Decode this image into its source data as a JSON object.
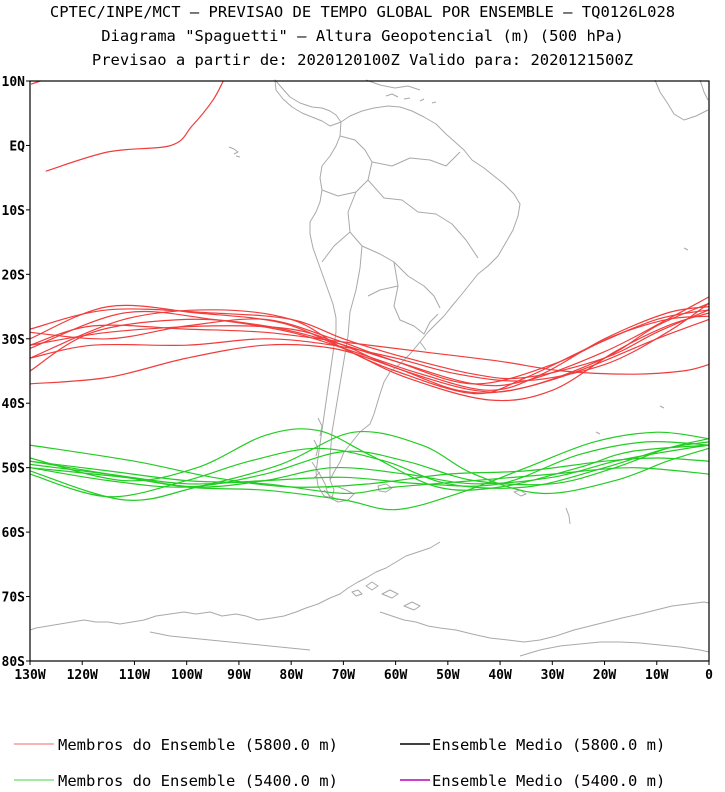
{
  "titles": {
    "line1": "CPTEC/INPE/MCT — PREVISAO DE TEMPO GLOBAL POR ENSEMBLE — TQ0126L028",
    "line2": "Diagrama \"Spaguetti\" — Altura Geopotencial (m) (500 hPa)",
    "line3": "Previsao a partir de: 2020120100Z  Valido para: 2020121500Z"
  },
  "map": {
    "lon_range": [
      -130,
      0
    ],
    "lat_range": [
      -80,
      10
    ],
    "lat_ticks": [
      {
        "lat": 10,
        "label": "10N"
      },
      {
        "lat": 0,
        "label": "EQ"
      },
      {
        "lat": -10,
        "label": "10S"
      },
      {
        "lat": -20,
        "label": "20S"
      },
      {
        "lat": -30,
        "label": "30S"
      },
      {
        "lat": -40,
        "label": "40S"
      },
      {
        "lat": -50,
        "label": "50S"
      },
      {
        "lat": -60,
        "label": "60S"
      },
      {
        "lat": -70,
        "label": "70S"
      },
      {
        "lat": -80,
        "label": "80S"
      }
    ],
    "lon_ticks": [
      {
        "lon": -130,
        "label": "130W"
      },
      {
        "lon": -120,
        "label": "120W"
      },
      {
        "lon": -110,
        "label": "110W"
      },
      {
        "lon": -100,
        "label": "100W"
      },
      {
        "lon": -90,
        "label": "90W"
      },
      {
        "lon": -80,
        "label": "80W"
      },
      {
        "lon": -70,
        "label": "70W"
      },
      {
        "lon": -60,
        "label": "60W"
      },
      {
        "lon": -50,
        "label": "50W"
      },
      {
        "lon": -40,
        "label": "40W"
      },
      {
        "lon": -30,
        "label": "30W"
      },
      {
        "lon": -20,
        "label": "20W"
      },
      {
        "lon": -10,
        "label": "10W"
      },
      {
        "lon": 0,
        "label": "0"
      }
    ],
    "coast_color": "#a9a9a9"
  },
  "chart_data": {
    "type": "line",
    "x_unit": "longitude (deg)",
    "y_unit": "latitude (deg)",
    "series": [
      {
        "group": "red",
        "color": "#f03c3c",
        "points": [
          [
            -130,
            -28.5
          ],
          [
            -115,
            -25.5
          ],
          [
            -95,
            -26
          ],
          [
            -80,
            -27
          ],
          [
            -70,
            -30
          ],
          [
            -60,
            -32.5
          ],
          [
            -45,
            -35.5
          ],
          [
            -35,
            -36
          ],
          [
            -20,
            -33
          ],
          [
            -10,
            -29
          ],
          [
            0,
            -25.5
          ]
        ]
      },
      {
        "group": "red",
        "color": "#f03c3c",
        "points": [
          [
            -130,
            -31
          ],
          [
            -115,
            -29
          ],
          [
            -95,
            -28
          ],
          [
            -80,
            -28.5
          ],
          [
            -70,
            -31
          ],
          [
            -60,
            -34.5
          ],
          [
            -45,
            -38
          ],
          [
            -35,
            -37.5
          ],
          [
            -20,
            -33
          ],
          [
            -10,
            -28
          ],
          [
            0,
            -24.5
          ]
        ]
      },
      {
        "group": "red",
        "color": "#f03c3c",
        "points": [
          [
            -130,
            -33
          ],
          [
            -112,
            -27
          ],
          [
            -95,
            -25.5
          ],
          [
            -80,
            -27
          ],
          [
            -70,
            -31.5
          ],
          [
            -60,
            -35
          ],
          [
            -45,
            -38.5
          ],
          [
            -35,
            -36
          ],
          [
            -22,
            -31
          ],
          [
            -10,
            -27
          ],
          [
            0,
            -25.5
          ]
        ]
      },
      {
        "group": "red",
        "color": "#f03c3c",
        "points": [
          [
            -130,
            -35
          ],
          [
            -118,
            -29
          ],
          [
            -100,
            -27
          ],
          [
            -85,
            -28
          ],
          [
            -72,
            -30.5
          ],
          [
            -60,
            -33.5
          ],
          [
            -45,
            -37
          ],
          [
            -35,
            -36.5
          ],
          [
            -20,
            -32
          ],
          [
            -8,
            -27
          ],
          [
            0,
            -23.5
          ]
        ]
      },
      {
        "group": "red",
        "color": "#f03c3c",
        "points": [
          [
            -130,
            -30
          ],
          [
            -115,
            -25
          ],
          [
            -98,
            -26
          ],
          [
            -82,
            -27.5
          ],
          [
            -70,
            -31.5
          ],
          [
            -58,
            -36
          ],
          [
            -42,
            -39.5
          ],
          [
            -30,
            -38
          ],
          [
            -18,
            -32
          ],
          [
            -8,
            -28
          ],
          [
            0,
            -26
          ]
        ]
      },
      {
        "group": "red",
        "color": "#f03c3c",
        "points": [
          [
            -130,
            -31
          ],
          [
            -118,
            -28
          ],
          [
            -100,
            -28.5
          ],
          [
            -85,
            -29
          ],
          [
            -70,
            -30.5
          ],
          [
            -55,
            -32
          ],
          [
            -40,
            -33.5
          ],
          [
            -28,
            -35
          ],
          [
            -15,
            -35.5
          ],
          [
            -5,
            -35
          ],
          [
            0,
            -34
          ]
        ]
      },
      {
        "group": "red",
        "color": "#f03c3c",
        "points": [
          [
            -130,
            -29
          ],
          [
            -115,
            -30
          ],
          [
            -100,
            -28
          ],
          [
            -85,
            -27
          ],
          [
            -72,
            -30
          ],
          [
            -60,
            -33.5
          ],
          [
            -45,
            -37
          ],
          [
            -30,
            -34
          ],
          [
            -18,
            -29.5
          ],
          [
            -8,
            -27
          ],
          [
            0,
            -26.5
          ]
        ]
      },
      {
        "group": "red",
        "color": "#f03c3c",
        "points": [
          [
            -130,
            -37
          ],
          [
            -115,
            -36
          ],
          [
            -100,
            -33
          ],
          [
            -85,
            -31
          ],
          [
            -72,
            -31.5
          ],
          [
            -60,
            -34.5
          ],
          [
            -48,
            -38
          ],
          [
            -38,
            -38
          ],
          [
            -25,
            -35
          ],
          [
            -10,
            -30
          ],
          [
            0,
            -27
          ]
        ]
      },
      {
        "group": "red",
        "color": "#f03c3c",
        "points": [
          [
            -130,
            -31.5
          ],
          [
            -112,
            -26
          ],
          [
            -95,
            -27
          ],
          [
            -80,
            -29
          ],
          [
            -68,
            -32
          ],
          [
            -55,
            -35.5
          ],
          [
            -42,
            -38
          ],
          [
            -32,
            -35.5
          ],
          [
            -20,
            -30
          ],
          [
            -8,
            -26
          ],
          [
            0,
            -25
          ]
        ]
      },
      {
        "group": "red",
        "color": "#f03c3c",
        "points": [
          [
            -130,
            -33
          ],
          [
            -118,
            -31
          ],
          [
            -100,
            -31
          ],
          [
            -85,
            -30
          ],
          [
            -72,
            -31
          ],
          [
            -60,
            -33
          ],
          [
            -48,
            -35.5
          ],
          [
            -35,
            -36.5
          ],
          [
            -20,
            -34
          ],
          [
            -8,
            -29
          ],
          [
            0,
            -24.5
          ]
        ]
      },
      {
        "group": "red",
        "color": "#f03c3c",
        "points": [
          [
            -127,
            -4
          ],
          [
            -115,
            -1
          ],
          [
            -103,
            0
          ],
          [
            -99,
            3
          ],
          [
            -95,
            7
          ],
          [
            -93,
            10
          ]
        ]
      },
      {
        "group": "red",
        "color": "#f03c3c",
        "points": [
          [
            -129.8,
            9.5
          ],
          [
            -128,
            10
          ]
        ]
      },
      {
        "group": "green",
        "color": "#22cc22",
        "points": [
          [
            -130,
            -46.5
          ],
          [
            -110,
            -49
          ],
          [
            -95,
            -51.5
          ],
          [
            -80,
            -53
          ],
          [
            -65,
            -52.5
          ],
          [
            -50,
            -51
          ],
          [
            -35,
            -50.5
          ],
          [
            -20,
            -49
          ],
          [
            -10,
            -48.5
          ],
          [
            0,
            -49
          ]
        ]
      },
      {
        "group": "green",
        "color": "#22cc22",
        "points": [
          [
            -130,
            -48.5
          ],
          [
            -112,
            -52
          ],
          [
            -98,
            -50
          ],
          [
            -85,
            -45
          ],
          [
            -75,
            -44.2
          ],
          [
            -65,
            -48
          ],
          [
            -52,
            -53
          ],
          [
            -40,
            -53
          ],
          [
            -25,
            -50
          ],
          [
            -15,
            -47.5
          ],
          [
            0,
            -46.5
          ]
        ]
      },
      {
        "group": "green",
        "color": "#22cc22",
        "points": [
          [
            -130,
            -49.5
          ],
          [
            -115,
            -51
          ],
          [
            -100,
            -52.5
          ],
          [
            -85,
            -52
          ],
          [
            -70,
            -51.5
          ],
          [
            -55,
            -52.5
          ],
          [
            -40,
            -52.5
          ],
          [
            -25,
            -48
          ],
          [
            -12,
            -46
          ],
          [
            0,
            -46.5
          ]
        ]
      },
      {
        "group": "green",
        "color": "#22cc22",
        "points": [
          [
            -130,
            -50
          ],
          [
            -115,
            -52
          ],
          [
            -100,
            -53
          ],
          [
            -85,
            -51
          ],
          [
            -70,
            -47.5
          ],
          [
            -58,
            -49
          ],
          [
            -45,
            -52
          ],
          [
            -30,
            -52.5
          ],
          [
            -18,
            -50
          ],
          [
            -8,
            -47
          ],
          [
            0,
            -45.5
          ]
        ]
      },
      {
        "group": "green",
        "color": "#22cc22",
        "points": [
          [
            -130,
            -51
          ],
          [
            -115,
            -54.5
          ],
          [
            -100,
            -52
          ],
          [
            -88,
            -49
          ],
          [
            -75,
            -47
          ],
          [
            -62,
            -49
          ],
          [
            -50,
            -52.5
          ],
          [
            -35,
            -53
          ],
          [
            -20,
            -50
          ],
          [
            -8,
            -47
          ],
          [
            0,
            -46
          ]
        ]
      },
      {
        "group": "green",
        "color": "#22cc22",
        "points": [
          [
            -130,
            -49
          ],
          [
            -115,
            -50.5
          ],
          [
            -100,
            -52
          ],
          [
            -85,
            -52.5
          ],
          [
            -70,
            -54
          ],
          [
            -60,
            -53
          ],
          [
            -45,
            -52
          ],
          [
            -30,
            -51
          ],
          [
            -15,
            -50
          ],
          [
            0,
            -51
          ]
        ]
      },
      {
        "group": "green",
        "color": "#22cc22",
        "points": [
          [
            -130,
            -50.5
          ],
          [
            -112,
            -55
          ],
          [
            -98,
            -53
          ],
          [
            -82,
            -49.5
          ],
          [
            -68,
            -44.5
          ],
          [
            -55,
            -46.5
          ],
          [
            -45,
            -51
          ],
          [
            -32,
            -54
          ],
          [
            -18,
            -52
          ],
          [
            -8,
            -49
          ],
          [
            0,
            -47
          ]
        ]
      },
      {
        "group": "green",
        "color": "#22cc22",
        "points": [
          [
            -130,
            -49
          ],
          [
            -115,
            -51
          ],
          [
            -100,
            -53
          ],
          [
            -85,
            -53.5
          ],
          [
            -70,
            -55
          ],
          [
            -60,
            -56.5
          ],
          [
            -48,
            -54
          ],
          [
            -35,
            -50
          ],
          [
            -22,
            -46
          ],
          [
            -10,
            -44.5
          ],
          [
            0,
            -45.5
          ]
        ]
      },
      {
        "group": "green",
        "color": "#22cc22",
        "points": [
          [
            -130,
            -50
          ],
          [
            -112,
            -51.5
          ],
          [
            -98,
            -53
          ],
          [
            -85,
            -52
          ],
          [
            -72,
            -50
          ],
          [
            -58,
            -51
          ],
          [
            -45,
            -52.5
          ],
          [
            -30,
            -51.5
          ],
          [
            -18,
            -49
          ],
          [
            -8,
            -47.5
          ],
          [
            0,
            -46.5
          ]
        ]
      }
    ],
    "legend": [
      {
        "label": "Membros do Ensemble (5800.0 m)",
        "color": "#f06a6a"
      },
      {
        "label": "Ensemble Medio (5800.0 m)",
        "color": "#000000"
      },
      {
        "label": "Membros do Ensemble (5400.0 m)",
        "color": "#44d444"
      },
      {
        "label": "Ensemble Medio (5400.0 m)",
        "color": "#bb00bb"
      }
    ]
  }
}
